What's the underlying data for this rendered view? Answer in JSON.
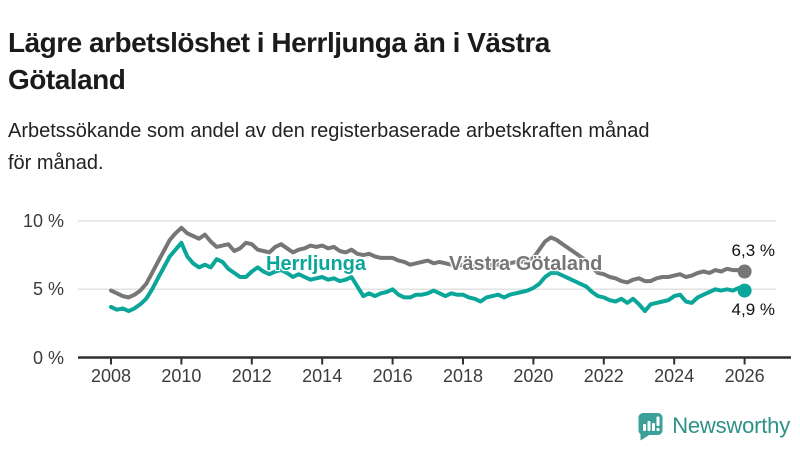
{
  "header": {
    "title_lines": [
      "Lägre arbetslöshet i Herrljunga än i Västra",
      "Götaland"
    ],
    "subtitle_lines": [
      "Arbetssökande som andel av den registerbaserade arbetskraften månad",
      "för månad."
    ]
  },
  "chart_data": {
    "type": "line",
    "unit": "%",
    "grid": "horizontal-gridlines",
    "legend_position": "labels-on-lines",
    "x_start": 2008,
    "x_step_months": 2,
    "xlim": [
      2007.1,
      2026.6
    ],
    "ylim": [
      0,
      10.9
    ],
    "y_ticks": [
      {
        "value": 0,
        "label": "0 %"
      },
      {
        "value": 5,
        "label": "5 %"
      },
      {
        "value": 10,
        "label": "10 %"
      }
    ],
    "x_ticks": [
      {
        "year": 2008,
        "label": "2008"
      },
      {
        "year": 2010,
        "label": "2010"
      },
      {
        "year": 2012,
        "label": "2012"
      },
      {
        "year": 2014,
        "label": "2014"
      },
      {
        "year": 2016,
        "label": "2016"
      },
      {
        "year": 2018,
        "label": "2018"
      },
      {
        "year": 2020,
        "label": "2020"
      },
      {
        "year": 2022,
        "label": "2022"
      },
      {
        "year": 2024,
        "label": "2024"
      },
      {
        "year": 2026,
        "label": "2026"
      }
    ],
    "series": [
      {
        "id": "vastra-gotaland-line",
        "name": "Västra Götaland",
        "color": "#767676",
        "end_label": "6,3 %",
        "end_value": 6.3,
        "values": [
          4.9,
          4.7,
          4.5,
          4.4,
          4.6,
          4.9,
          5.4,
          6.2,
          7.0,
          7.8,
          8.6,
          9.1,
          9.5,
          9.1,
          8.9,
          8.7,
          9.0,
          8.5,
          8.1,
          8.2,
          8.3,
          7.8,
          8.0,
          8.4,
          8.3,
          7.9,
          7.8,
          7.7,
          8.1,
          8.3,
          8.0,
          7.7,
          7.9,
          8.0,
          8.2,
          8.1,
          8.2,
          8.0,
          8.1,
          7.8,
          7.7,
          7.9,
          7.6,
          7.5,
          7.6,
          7.4,
          7.3,
          7.3,
          7.3,
          7.1,
          7.0,
          6.8,
          6.9,
          7.0,
          7.1,
          6.9,
          7.0,
          6.9,
          6.8,
          6.7,
          6.8,
          6.6,
          6.7,
          6.6,
          6.7,
          6.8,
          6.8,
          6.9,
          6.9,
          7.0,
          7.0,
          7.1,
          7.3,
          7.9,
          8.5,
          8.8,
          8.6,
          8.3,
          8.0,
          7.7,
          7.4,
          7.1,
          6.6,
          6.2,
          6.1,
          5.9,
          5.8,
          5.6,
          5.5,
          5.7,
          5.8,
          5.6,
          5.6,
          5.8,
          5.9,
          5.9,
          6.0,
          6.1,
          5.9,
          6.0,
          6.2,
          6.3,
          6.2,
          6.4,
          6.3,
          6.5,
          6.4,
          6.4,
          6.3
        ]
      },
      {
        "id": "herrljunga-line",
        "name": "Herrljunga",
        "color": "#0ba69a",
        "end_label": "4,9 %",
        "end_value": 4.9,
        "values": [
          3.7,
          3.5,
          3.6,
          3.4,
          3.6,
          3.9,
          4.3,
          5.0,
          5.8,
          6.6,
          7.4,
          7.9,
          8.4,
          7.4,
          6.9,
          6.6,
          6.8,
          6.6,
          7.2,
          7.0,
          6.5,
          6.2,
          5.9,
          5.9,
          6.3,
          6.6,
          6.3,
          6.1,
          6.3,
          6.4,
          6.2,
          5.9,
          6.1,
          5.9,
          5.7,
          5.8,
          5.9,
          5.7,
          5.8,
          5.6,
          5.7,
          5.9,
          5.2,
          4.5,
          4.7,
          4.5,
          4.7,
          4.8,
          5.0,
          4.6,
          4.4,
          4.4,
          4.6,
          4.6,
          4.7,
          4.9,
          4.7,
          4.5,
          4.7,
          4.6,
          4.6,
          4.4,
          4.3,
          4.1,
          4.4,
          4.5,
          4.6,
          4.4,
          4.6,
          4.7,
          4.8,
          4.9,
          5.1,
          5.4,
          5.9,
          6.2,
          6.2,
          6.0,
          5.8,
          5.6,
          5.4,
          5.2,
          4.8,
          4.5,
          4.4,
          4.2,
          4.1,
          4.3,
          4.0,
          4.3,
          3.9,
          3.4,
          3.9,
          4.0,
          4.1,
          4.2,
          4.5,
          4.6,
          4.1,
          4.0,
          4.4,
          4.6,
          4.8,
          5.0,
          4.9,
          5.0,
          4.9,
          5.1,
          4.9
        ]
      }
    ]
  },
  "branding": {
    "logo_text": "Newsworthy",
    "logo_color": "#2f9089",
    "logo_icon": "bar-chart-speech-bubble",
    "logo_icon_color": "#3aa099"
  }
}
